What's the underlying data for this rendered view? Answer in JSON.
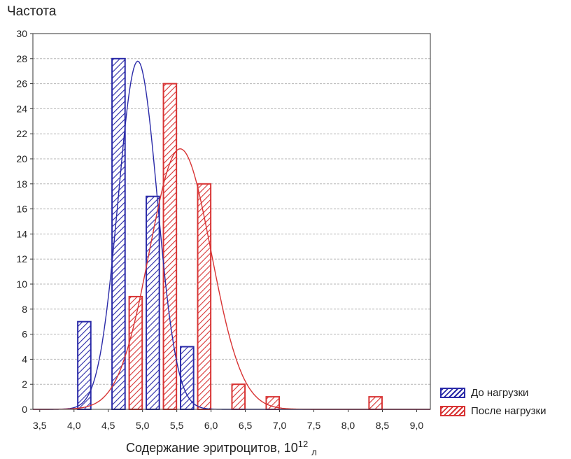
{
  "chart_data": {
    "type": "bar",
    "ylabel": "Частота",
    "xlabel": "Содержание эритроцитов, 10",
    "xlabel_sup": "12",
    "xlabel_sub": "л",
    "xlim": [
      3.4,
      9.2
    ],
    "ylim": [
      0,
      30
    ],
    "x_ticks": [
      "3,5",
      "4,0",
      "4,5",
      "5,0",
      "5,5",
      "6,0",
      "6,5",
      "7,0",
      "7,5",
      "8,0",
      "8,5",
      "9,0"
    ],
    "x_tick_values": [
      3.5,
      4.0,
      4.5,
      5.0,
      5.5,
      6.0,
      6.5,
      7.0,
      7.5,
      8.0,
      8.5,
      9.0
    ],
    "y_ticks": [
      0,
      2,
      4,
      6,
      8,
      10,
      12,
      14,
      16,
      18,
      20,
      22,
      24,
      26,
      28,
      30
    ],
    "grid": true,
    "legend_position": "bottom-right",
    "series": [
      {
        "name": "До нагрузки",
        "color": "#2a2aa8",
        "bins": [
          {
            "x": 4.15,
            "value": 7
          },
          {
            "x": 4.65,
            "value": 28
          },
          {
            "x": 5.15,
            "value": 17
          },
          {
            "x": 5.65,
            "value": 5
          }
        ],
        "normal_fit": {
          "mean": 4.93,
          "sd": 0.285,
          "peak": 27.8
        }
      },
      {
        "name": "После нагрузки",
        "color": "#d83434",
        "bins": [
          {
            "x": 4.9,
            "value": 9
          },
          {
            "x": 5.4,
            "value": 26
          },
          {
            "x": 5.9,
            "value": 18
          },
          {
            "x": 6.4,
            "value": 2
          },
          {
            "x": 6.9,
            "value": 1
          },
          {
            "x": 8.4,
            "value": 1
          }
        ],
        "normal_fit": {
          "mean": 5.55,
          "sd": 0.45,
          "peak": 20.8
        }
      }
    ]
  }
}
